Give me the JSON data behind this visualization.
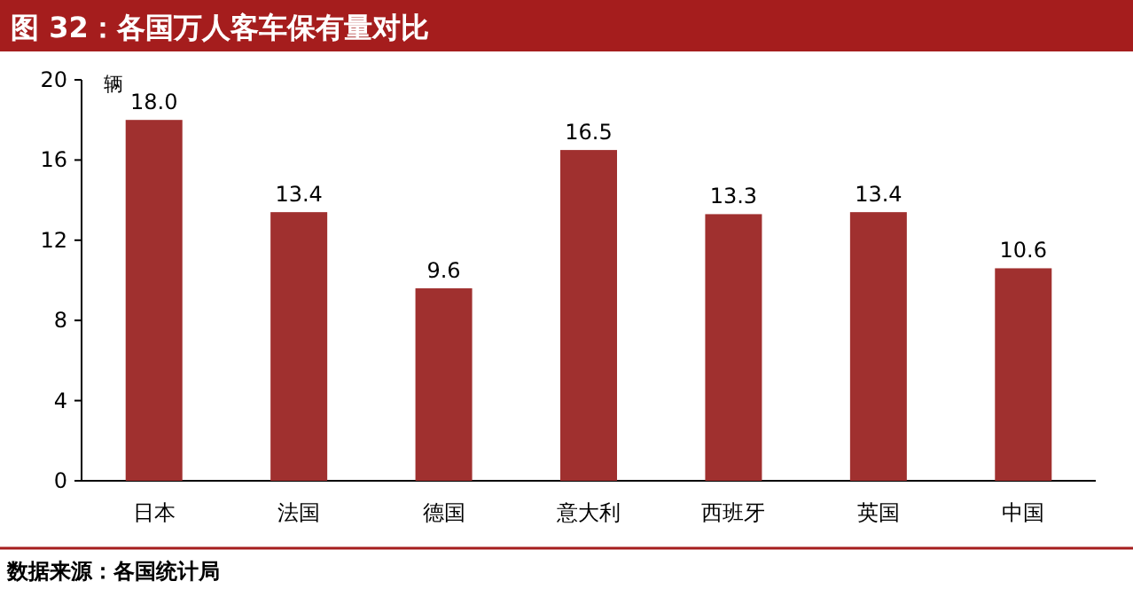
{
  "chart_data": {
    "type": "bar",
    "title": "图 32：各国万人客车保有量对比",
    "ylabel": "辆",
    "categories": [
      "日本",
      "法国",
      "德国",
      "意大利",
      "西班牙",
      "英国",
      "中国"
    ],
    "values": [
      18.0,
      13.4,
      9.6,
      16.5,
      13.3,
      13.4,
      10.6
    ],
    "color": "#a0302f",
    "value_labels": [
      "18.0",
      "13.4",
      "9.6",
      "16.5",
      "13.3",
      "13.4",
      "10.6"
    ],
    "ylim": [
      0,
      20
    ],
    "yticks": [
      0,
      4,
      8,
      12,
      16,
      20
    ],
    "annotations": [
      "数据来源：各国统计局"
    ]
  }
}
